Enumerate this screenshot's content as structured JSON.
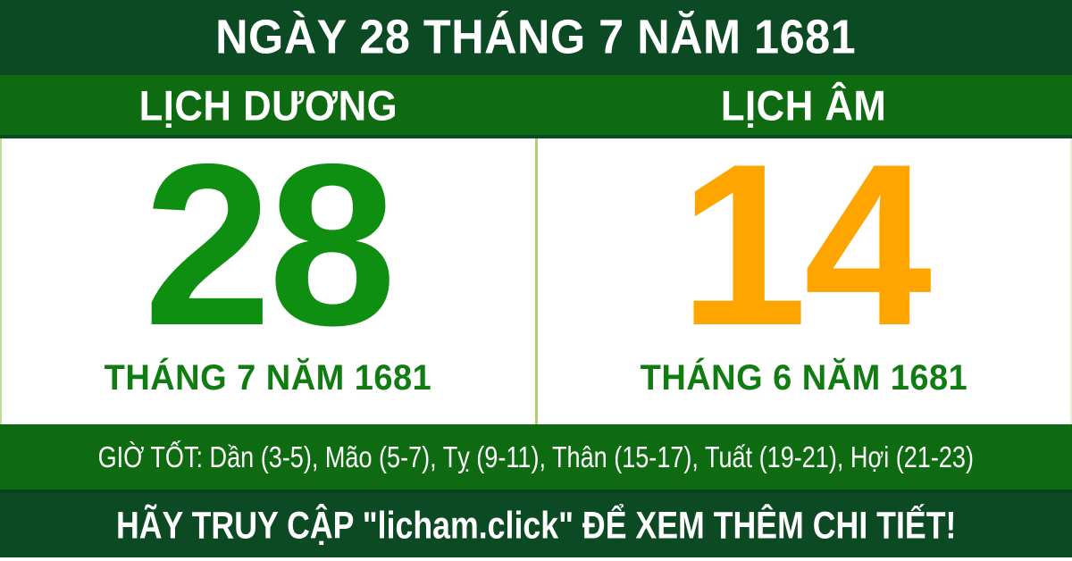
{
  "title": "NGÀY 28 THÁNG 7 NĂM 1681",
  "solar": {
    "header": "LỊCH DƯƠNG",
    "day": "28",
    "month_year": "THÁNG 7 NĂM 1681"
  },
  "lunar": {
    "header": "LỊCH ÂM",
    "day": "14",
    "month_year": "THÁNG 6 NĂM 1681"
  },
  "good_hours": {
    "text": "GIỜ TỐT: Dần (3-5), Mão (5-7), Tỵ (9-11), Thân (15-17), Tuất (19-21), Hợi (21-23)"
  },
  "footer": {
    "text": "HÃY TRUY CẬP \"licham.click\" ĐỂ XEM THÊM CHI TIẾT!"
  },
  "colors": {
    "dark_green_bar": "#0B4A23",
    "green_bar": "#0E6B11",
    "solar_day_green": "#0F8F12",
    "month_label_green": "#117C12",
    "lunar_day_orange": "#FFA500",
    "divider_light_green": "#A6D272",
    "text_white": "#FFFFFF",
    "panel_background": "#FFFFFF"
  }
}
